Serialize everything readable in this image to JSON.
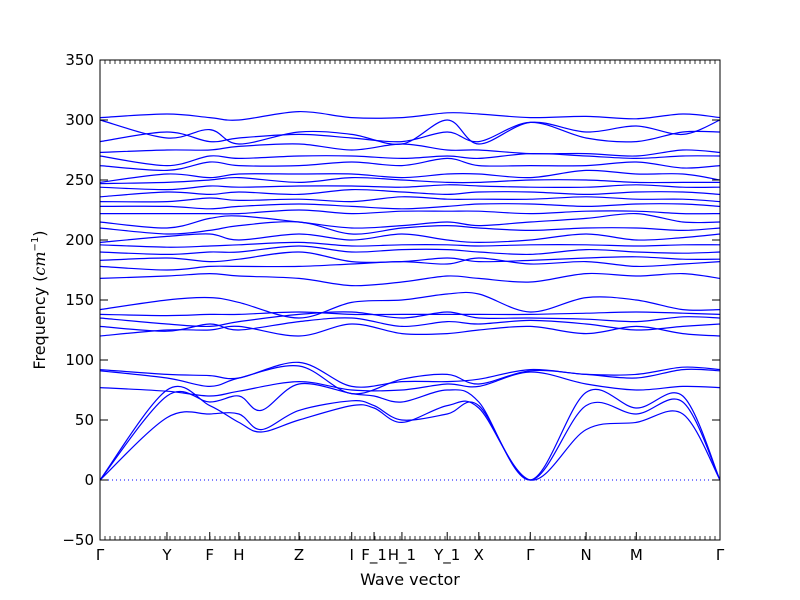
{
  "chart_data": {
    "type": "line",
    "title": "",
    "xlabel": "Wave vector",
    "ylabel_main": "Frequency (",
    "ylabel_unit_base": "cm",
    "ylabel_unit_exp": "−1",
    "ylabel_close": ")",
    "ylim": [
      -50,
      350
    ],
    "yticks": [
      -50,
      0,
      50,
      100,
      150,
      200,
      250,
      300,
      350
    ],
    "x_labels": [
      {
        "label": "Γ",
        "x": 0.0
      },
      {
        "label": "Y",
        "x": 0.108
      },
      {
        "label": "F",
        "x": 0.177
      },
      {
        "label": "H",
        "x": 0.224
      },
      {
        "label": "Z",
        "x": 0.321
      },
      {
        "label": "I",
        "x": 0.406
      },
      {
        "label": "F_1",
        "x": 0.442
      },
      {
        "label": "H_1",
        "x": 0.487
      },
      {
        "label": "Y_1",
        "x": 0.56
      },
      {
        "label": "X",
        "x": 0.611
      },
      {
        "label": "Γ",
        "x": 0.694
      },
      {
        "label": "N",
        "x": 0.784
      },
      {
        "label": "M",
        "x": 0.865
      },
      {
        "label": "Γ",
        "x": 1.0
      }
    ],
    "zero_line": 0,
    "line_color": "#0000ff",
    "series": [
      {
        "x": [
          0,
          0.108,
          0.177,
          0.224,
          0.26,
          0.321,
          0.406,
          0.442,
          0.487,
          0.56,
          0.611,
          0.694,
          0.784,
          0.865,
          0.94,
          1
        ],
        "values": [
          0,
          75,
          62,
          48,
          40,
          50,
          62,
          60,
          48,
          62,
          60,
          0,
          42,
          48,
          55,
          0
        ]
      },
      {
        "x": [
          0,
          0.108,
          0.177,
          0.224,
          0.26,
          0.321,
          0.406,
          0.442,
          0.487,
          0.56,
          0.611,
          0.694,
          0.784,
          0.865,
          0.94,
          1
        ],
        "values": [
          0,
          52,
          55,
          55,
          42,
          58,
          66,
          62,
          50,
          55,
          62,
          0,
          62,
          55,
          65,
          0
        ]
      },
      {
        "x": [
          0,
          0.108,
          0.177,
          0.224,
          0.26,
          0.321,
          0.406,
          0.442,
          0.487,
          0.56,
          0.611,
          0.694,
          0.784,
          0.865,
          0.94,
          1
        ],
        "values": [
          0,
          70,
          65,
          70,
          58,
          80,
          72,
          70,
          65,
          75,
          65,
          0,
          73,
          60,
          70,
          0
        ]
      },
      {
        "x": [
          0,
          0.108,
          0.177,
          0.224,
          0.321,
          0.406,
          0.487,
          0.56,
          0.611,
          0.694,
          0.784,
          0.865,
          0.94,
          1
        ],
        "values": [
          77,
          74,
          70,
          74,
          82,
          75,
          75,
          80,
          78,
          90,
          80,
          75,
          78,
          77
        ]
      },
      {
        "x": [
          0,
          0.108,
          0.177,
          0.224,
          0.321,
          0.406,
          0.487,
          0.56,
          0.611,
          0.694,
          0.784,
          0.865,
          0.94,
          1
        ],
        "values": [
          91,
          85,
          78,
          85,
          95,
          72,
          84,
          88,
          80,
          91,
          88,
          85,
          92,
          91
        ]
      },
      {
        "x": [
          0,
          0.108,
          0.177,
          0.224,
          0.321,
          0.406,
          0.487,
          0.56,
          0.611,
          0.694,
          0.784,
          0.865,
          0.94,
          1
        ],
        "values": [
          92,
          88,
          87,
          85,
          98,
          78,
          82,
          82,
          84,
          92,
          88,
          88,
          94,
          92
        ]
      },
      {
        "x": [
          0,
          0.108,
          0.177,
          0.224,
          0.321,
          0.406,
          0.487,
          0.56,
          0.611,
          0.694,
          0.784,
          0.865,
          0.94,
          1
        ],
        "values": [
          120,
          125,
          125,
          128,
          120,
          130,
          122,
          122,
          125,
          128,
          122,
          128,
          122,
          120
        ]
      },
      {
        "x": [
          0,
          0.108,
          0.177,
          0.224,
          0.321,
          0.406,
          0.487,
          0.56,
          0.611,
          0.694,
          0.784,
          0.865,
          0.94,
          1
        ],
        "values": [
          128,
          124,
          130,
          125,
          132,
          135,
          128,
          132,
          130,
          133,
          130,
          125,
          128,
          130
        ]
      },
      {
        "x": [
          0,
          0.108,
          0.177,
          0.224,
          0.321,
          0.406,
          0.487,
          0.56,
          0.611,
          0.694,
          0.784,
          0.865,
          0.94,
          1
        ],
        "values": [
          135,
          130,
          128,
          132,
          138,
          140,
          135,
          140,
          135,
          135,
          134,
          132,
          136,
          135
        ]
      },
      {
        "x": [
          0,
          0.108,
          0.177,
          0.224,
          0.321,
          0.406,
          0.487,
          0.56,
          0.611,
          0.694,
          0.784,
          0.865,
          0.94,
          1
        ],
        "values": [
          138,
          137,
          138,
          138,
          140,
          138,
          138,
          138,
          138,
          138,
          139,
          140,
          139,
          138
        ]
      },
      {
        "x": [
          0,
          0.108,
          0.177,
          0.224,
          0.321,
          0.406,
          0.487,
          0.56,
          0.611,
          0.694,
          0.784,
          0.865,
          0.94,
          1
        ],
        "values": [
          142,
          150,
          152,
          148,
          135,
          148,
          150,
          155,
          155,
          140,
          152,
          150,
          142,
          142
        ]
      },
      {
        "x": [
          0,
          0.108,
          0.177,
          0.224,
          0.321,
          0.406,
          0.487,
          0.56,
          0.611,
          0.694,
          0.784,
          0.865,
          0.94,
          1
        ],
        "values": [
          168,
          170,
          172,
          170,
          168,
          162,
          165,
          170,
          168,
          165,
          172,
          170,
          172,
          168
        ]
      },
      {
        "x": [
          0,
          0.108,
          0.177,
          0.224,
          0.321,
          0.406,
          0.487,
          0.56,
          0.611,
          0.694,
          0.784,
          0.865,
          0.94,
          1
        ],
        "values": [
          178,
          175,
          178,
          178,
          178,
          180,
          182,
          180,
          185,
          180,
          182,
          178,
          180,
          182
        ]
      },
      {
        "x": [
          0,
          0.108,
          0.177,
          0.224,
          0.321,
          0.406,
          0.487,
          0.56,
          0.611,
          0.694,
          0.784,
          0.865,
          0.94,
          1
        ],
        "values": [
          183,
          185,
          182,
          184,
          190,
          182,
          182,
          185,
          182,
          183,
          185,
          186,
          184,
          184
        ]
      },
      {
        "x": [
          0,
          0.108,
          0.177,
          0.224,
          0.321,
          0.406,
          0.487,
          0.56,
          0.611,
          0.694,
          0.784,
          0.865,
          0.94,
          1
        ],
        "values": [
          190,
          188,
          190,
          190,
          195,
          190,
          192,
          192,
          190,
          188,
          192,
          190,
          189,
          190
        ]
      },
      {
        "x": [
          0,
          0.108,
          0.177,
          0.224,
          0.321,
          0.406,
          0.487,
          0.56,
          0.611,
          0.694,
          0.784,
          0.865,
          0.94,
          1
        ],
        "values": [
          196,
          194,
          195,
          196,
          198,
          195,
          196,
          196,
          195,
          196,
          196,
          195,
          196,
          196
        ]
      },
      {
        "x": [
          0,
          0.108,
          0.177,
          0.224,
          0.321,
          0.406,
          0.487,
          0.56,
          0.611,
          0.694,
          0.784,
          0.865,
          0.94,
          1
        ],
        "values": [
          198,
          203,
          205,
          200,
          205,
          200,
          205,
          200,
          198,
          200,
          205,
          200,
          202,
          205
        ]
      },
      {
        "x": [
          0,
          0.108,
          0.177,
          0.224,
          0.321,
          0.406,
          0.487,
          0.56,
          0.611,
          0.694,
          0.784,
          0.865,
          0.94,
          1
        ],
        "values": [
          210,
          205,
          208,
          212,
          215,
          205,
          210,
          212,
          210,
          208,
          210,
          210,
          208,
          210
        ]
      },
      {
        "x": [
          0,
          0.108,
          0.177,
          0.224,
          0.321,
          0.406,
          0.487,
          0.56,
          0.611,
          0.694,
          0.784,
          0.865,
          0.94,
          1
        ],
        "values": [
          215,
          210,
          218,
          220,
          215,
          210,
          212,
          215,
          212,
          215,
          218,
          222,
          215,
          215
        ]
      },
      {
        "x": [
          0,
          0.108,
          0.177,
          0.224,
          0.321,
          0.406,
          0.487,
          0.56,
          0.611,
          0.694,
          0.784,
          0.865,
          0.94,
          1
        ],
        "values": [
          222,
          222,
          222,
          222,
          225,
          222,
          224,
          224,
          224,
          222,
          224,
          224,
          222,
          222
        ]
      },
      {
        "x": [
          0,
          0.108,
          0.177,
          0.224,
          0.321,
          0.406,
          0.487,
          0.56,
          0.611,
          0.694,
          0.784,
          0.865,
          0.94,
          1
        ],
        "values": [
          228,
          228,
          226,
          228,
          230,
          228,
          226,
          228,
          230,
          230,
          228,
          230,
          230,
          228
        ]
      },
      {
        "x": [
          0,
          0.108,
          0.177,
          0.224,
          0.321,
          0.406,
          0.487,
          0.56,
          0.611,
          0.694,
          0.784,
          0.865,
          0.94,
          1
        ],
        "values": [
          232,
          232,
          235,
          233,
          234,
          232,
          236,
          234,
          234,
          234,
          236,
          234,
          234,
          232
        ]
      },
      {
        "x": [
          0,
          0.108,
          0.177,
          0.224,
          0.321,
          0.406,
          0.487,
          0.56,
          0.611,
          0.694,
          0.784,
          0.865,
          0.94,
          1
        ],
        "values": [
          236,
          240,
          238,
          240,
          238,
          242,
          240,
          238,
          240,
          240,
          238,
          240,
          240,
          238
        ]
      },
      {
        "x": [
          0,
          0.108,
          0.177,
          0.224,
          0.321,
          0.406,
          0.487,
          0.56,
          0.611,
          0.694,
          0.784,
          0.865,
          0.94,
          1
        ],
        "values": [
          244,
          242,
          245,
          244,
          245,
          245,
          244,
          246,
          245,
          244,
          244,
          246,
          244,
          244
        ]
      },
      {
        "x": [
          0,
          0.108,
          0.177,
          0.224,
          0.321,
          0.406,
          0.487,
          0.56,
          0.611,
          0.694,
          0.784,
          0.865,
          0.94,
          1
        ],
        "values": [
          247,
          248,
          250,
          252,
          248,
          252,
          250,
          248,
          248,
          250,
          250,
          248,
          248,
          248
        ]
      },
      {
        "x": [
          0,
          0.108,
          0.177,
          0.224,
          0.321,
          0.406,
          0.487,
          0.56,
          0.611,
          0.694,
          0.784,
          0.865,
          0.94,
          1
        ],
        "values": [
          248,
          255,
          252,
          255,
          255,
          255,
          252,
          255,
          255,
          252,
          258,
          255,
          255,
          250
        ]
      },
      {
        "x": [
          0,
          0.108,
          0.177,
          0.224,
          0.321,
          0.406,
          0.487,
          0.56,
          0.611,
          0.694,
          0.784,
          0.865,
          0.94,
          1
        ],
        "values": [
          262,
          258,
          265,
          262,
          262,
          265,
          262,
          268,
          262,
          262,
          262,
          265,
          260,
          262
        ]
      },
      {
        "x": [
          0,
          0.108,
          0.177,
          0.224,
          0.321,
          0.406,
          0.487,
          0.56,
          0.611,
          0.694,
          0.784,
          0.865,
          0.94,
          1
        ],
        "values": [
          270,
          262,
          270,
          268,
          270,
          270,
          268,
          270,
          268,
          272,
          270,
          268,
          270,
          270
        ]
      },
      {
        "x": [
          0,
          0.108,
          0.177,
          0.224,
          0.321,
          0.406,
          0.487,
          0.56,
          0.611,
          0.694,
          0.784,
          0.865,
          0.94,
          1
        ],
        "values": [
          273,
          275,
          275,
          278,
          280,
          275,
          280,
          275,
          275,
          272,
          272,
          270,
          275,
          273
        ]
      },
      {
        "x": [
          0,
          0.108,
          0.177,
          0.224,
          0.321,
          0.406,
          0.487,
          0.56,
          0.611,
          0.694,
          0.784,
          0.865,
          0.94,
          1
        ],
        "values": [
          282,
          290,
          282,
          285,
          288,
          285,
          282,
          290,
          282,
          298,
          285,
          282,
          290,
          290
        ]
      },
      {
        "x": [
          0,
          0.108,
          0.177,
          0.224,
          0.321,
          0.406,
          0.487,
          0.56,
          0.611,
          0.694,
          0.784,
          0.865,
          0.94,
          1
        ],
        "values": [
          300,
          285,
          292,
          280,
          290,
          288,
          280,
          300,
          280,
          298,
          290,
          295,
          288,
          300
        ]
      },
      {
        "x": [
          0,
          0.108,
          0.177,
          0.224,
          0.321,
          0.406,
          0.487,
          0.56,
          0.611,
          0.694,
          0.784,
          0.865,
          0.94,
          1
        ],
        "values": [
          302,
          305,
          302,
          300,
          307,
          302,
          302,
          306,
          305,
          302,
          303,
          301,
          305,
          302
        ]
      }
    ]
  }
}
